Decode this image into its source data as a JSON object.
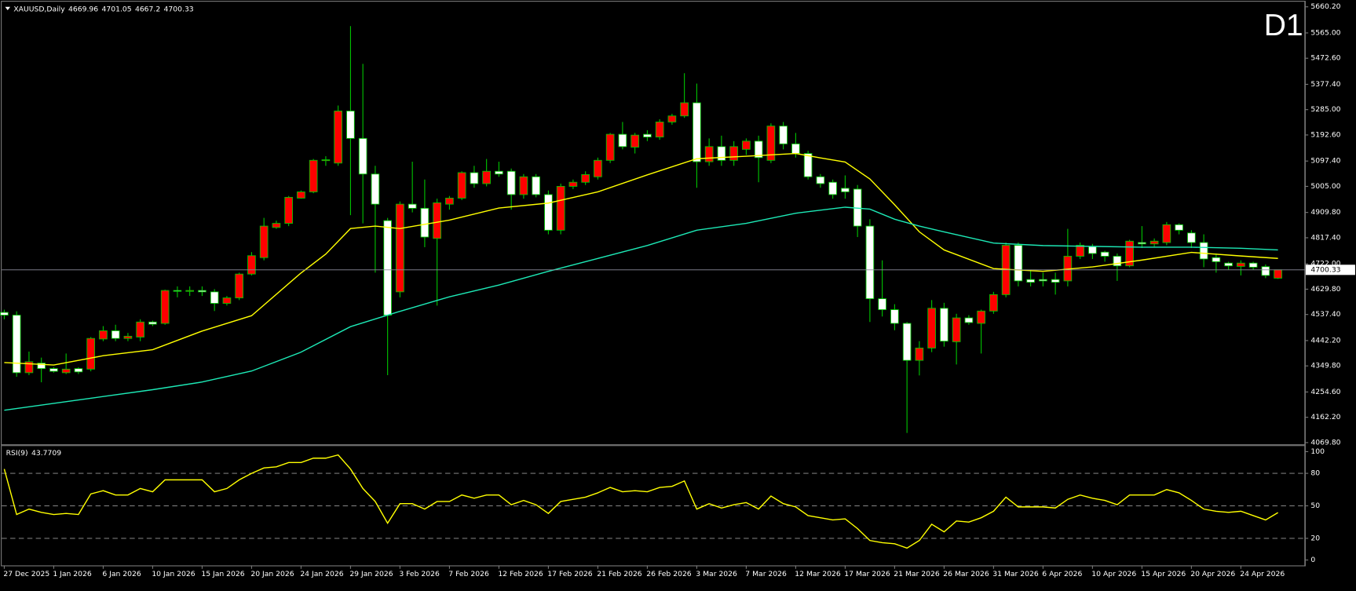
{
  "chart_data": [
    {
      "type": "candlestick",
      "title": "XAUUSD,Daily",
      "timeframe": "D1",
      "timeframe_color": "#ff0000",
      "categories": [
        "27 Dec 2025",
        null,
        null,
        null,
        "1 Jan 2026",
        null,
        null,
        null,
        "6 Jan 2026",
        null,
        null,
        null,
        "10 Jan 2026",
        null,
        null,
        null,
        "15 Jan 2026",
        null,
        null,
        null,
        "20 Jan 2026",
        null,
        null,
        null,
        "24 Jan 2026",
        null,
        null,
        null,
        "29 Jan 2026",
        null,
        null,
        null,
        "3 Feb 2026",
        null,
        null,
        null,
        "7 Feb 2026",
        null,
        null,
        null,
        "12 Feb 2026",
        null,
        null,
        null,
        "17 Feb 2026",
        null,
        null,
        null,
        "21 Feb 2026",
        null,
        null,
        null,
        "26 Feb 2026",
        null,
        null,
        null,
        "3 Mar 2026",
        null,
        null,
        null,
        "7 Mar 2026",
        null,
        null,
        null,
        "12 Mar 2026",
        null,
        null,
        null,
        "17 Mar 2026",
        null,
        null,
        null,
        "21 Mar 2026",
        null,
        null,
        null,
        "26 Mar 2026",
        null,
        null,
        null,
        "31 Mar 2026",
        null,
        null,
        null,
        "6 Apr 2026",
        null,
        null,
        null,
        "10 Apr 2026",
        null,
        null,
        null,
        "15 Apr 2026",
        null,
        null,
        null,
        "20 Apr 2026",
        null,
        null,
        null,
        "24 Apr 2026",
        null,
        null,
        null
      ],
      "open": [
        4545,
        4535,
        4325,
        4360,
        4340,
        4325,
        4340,
        4338,
        4448,
        4478,
        4450,
        4455,
        4510,
        4505,
        4625,
        4622,
        4625,
        4620,
        4578,
        4598,
        4685,
        4745,
        4855,
        4870,
        4962,
        4985,
        5100,
        5090,
        5280,
        5180,
        5050,
        4880,
        4620,
        4940,
        4925,
        4815,
        4940,
        4962,
        5055,
        5015,
        5060,
        5060,
        4975,
        5040,
        4975,
        4845,
        5005,
        5020,
        5040,
        5100,
        5195,
        5148,
        5195,
        5185,
        5240,
        5262,
        5310,
        5095,
        5150,
        5100,
        5140,
        5170,
        5100,
        5225,
        5160,
        5125,
        5040,
        5020,
        4998,
        4995,
        4860,
        4595,
        4555,
        4505,
        4370,
        4415,
        4560,
        4438,
        4525,
        4505,
        4550,
        4610,
        4790,
        4665,
        4665,
        4665,
        4660,
        4750,
        4785,
        4765,
        4750,
        4715,
        4800,
        4795,
        4800,
        4865,
        4835,
        4800,
        4745,
        4725,
        4713,
        4725,
        4712,
        4669.96
      ],
      "high": [
        4555,
        4549,
        4402,
        4380,
        4345,
        4395,
        4345,
        4455,
        4495,
        4500,
        4470,
        4520,
        4515,
        4628,
        4640,
        4640,
        4640,
        4630,
        4605,
        4690,
        4765,
        4890,
        4880,
        4970,
        4990,
        5105,
        5115,
        5300,
        5590,
        5452,
        5080,
        4890,
        4950,
        5095,
        5030,
        4960,
        4970,
        5060,
        5080,
        5105,
        5095,
        5070,
        5050,
        5050,
        4990,
        5015,
        5030,
        5060,
        5110,
        5200,
        5240,
        5200,
        5210,
        5250,
        5270,
        5418,
        5380,
        5180,
        5190,
        5170,
        5180,
        5190,
        5235,
        5240,
        5200,
        5135,
        5050,
        5030,
        5045,
        5010,
        4885,
        4735,
        4575,
        4510,
        4440,
        4590,
        4580,
        4540,
        4535,
        4555,
        4620,
        4800,
        4800,
        4700,
        4690,
        4690,
        4850,
        4800,
        4795,
        4770,
        4760,
        4810,
        4860,
        4815,
        4875,
        4870,
        4845,
        4830,
        4760,
        4730,
        4735,
        4730,
        4720,
        4701.05
      ],
      "low": [
        4520,
        4310,
        4316,
        4290,
        4325,
        4320,
        4320,
        4330,
        4440,
        4440,
        4440,
        4440,
        4495,
        4500,
        4600,
        4605,
        4605,
        4550,
        4570,
        4590,
        4680,
        4735,
        4850,
        4860,
        4960,
        4980,
        5080,
        5080,
        4900,
        4870,
        4690,
        4316,
        4600,
        4910,
        4783,
        4570,
        4920,
        4955,
        5000,
        5005,
        5040,
        4920,
        4960,
        4965,
        4830,
        4830,
        4995,
        5010,
        5030,
        5090,
        5140,
        5125,
        5170,
        5175,
        5230,
        5255,
        5000,
        5080,
        5080,
        5080,
        5120,
        5020,
        5090,
        5140,
        5110,
        5030,
        5000,
        4960,
        4960,
        4820,
        4510,
        4530,
        4480,
        4105,
        4315,
        4400,
        4420,
        4355,
        4500,
        4395,
        4540,
        4600,
        4640,
        4640,
        4640,
        4610,
        4640,
        4740,
        4740,
        4730,
        4660,
        4710,
        4780,
        4785,
        4790,
        4830,
        4780,
        4710,
        4690,
        4700,
        4680,
        4700,
        4670,
        4667.2
      ],
      "close": [
        4535,
        4325,
        4365,
        4340,
        4330,
        4338,
        4328,
        4450,
        4478,
        4450,
        4458,
        4510,
        4502,
        4625,
        4623,
        4625,
        4620,
        4578,
        4598,
        4685,
        4752,
        4860,
        4870,
        4965,
        4985,
        5100,
        5102,
        5280,
        5180,
        5050,
        4940,
        4535,
        4940,
        4925,
        4820,
        4945,
        4962,
        5055,
        5015,
        5060,
        5050,
        4975,
        5040,
        4975,
        4845,
        5005,
        5020,
        5048,
        5100,
        5195,
        5150,
        5192,
        5185,
        5240,
        5262,
        5310,
        5095,
        5150,
        5100,
        5150,
        5170,
        5110,
        5225,
        5160,
        5125,
        5040,
        5015,
        4975,
        4985,
        4860,
        4595,
        4555,
        4505,
        4370,
        4415,
        4560,
        4440,
        4525,
        4508,
        4550,
        4610,
        4790,
        4660,
        4655,
        4660,
        4655,
        4750,
        4790,
        4760,
        4750,
        4715,
        4805,
        4795,
        4805,
        4865,
        4845,
        4800,
        4740,
        4730,
        4715,
        4725,
        4710,
        4680,
        4700.33
      ],
      "bull_color": "#ff0000",
      "bear_color": "#ffffff",
      "wick_color": "#00c800",
      "price_line_color": "#8c8c9c",
      "series": [
        {
          "color": "#ffff00",
          "x": [
            0,
            4,
            8,
            12,
            16,
            20,
            24,
            26,
            28,
            30,
            32,
            36,
            40,
            44,
            48,
            52,
            56,
            60,
            64,
            66,
            68,
            70,
            72,
            74,
            76,
            80,
            84,
            88,
            92,
            96,
            100,
            103
          ],
          "values": [
            4362,
            4353,
            4387,
            4409,
            4477,
            4533,
            4689,
            4758,
            4851,
            4860,
            4851,
            4882,
            4926,
            4944,
            4985,
            5047,
            5106,
            5115,
            5125,
            5109,
            5094,
            5032,
            4938,
            4839,
            4773,
            4705,
            4695,
            4711,
            4736,
            4764,
            4751,
            4742
          ]
        },
        {
          "color": "#1de9b6",
          "x": [
            0,
            4,
            8,
            12,
            16,
            20,
            24,
            28,
            32,
            36,
            40,
            44,
            48,
            52,
            56,
            60,
            64,
            68,
            70,
            72,
            74,
            76,
            80,
            84,
            88,
            92,
            96,
            100,
            103
          ],
          "values": [
            4188,
            4213,
            4238,
            4263,
            4291,
            4331,
            4400,
            4493,
            4549,
            4602,
            4645,
            4695,
            4742,
            4789,
            4845,
            4870,
            4907,
            4929,
            4922,
            4885,
            4860,
            4839,
            4798,
            4789,
            4786,
            4783,
            4783,
            4779,
            4773
          ]
        }
      ],
      "ylim": [
        4063.6,
        5675.8
      ],
      "yticks": [
        {
          "value": 5660.2,
          "label": "5660.20"
        },
        {
          "value": 5565,
          "label": "5565.00"
        },
        {
          "value": 5472.6,
          "label": "5472.60"
        },
        {
          "value": 5377.4,
          "label": "5377.40"
        },
        {
          "value": 5285,
          "label": "5285.00"
        },
        {
          "value": 5192.6,
          "label": "5192.60"
        },
        {
          "value": 5097.4,
          "label": "5097.40"
        },
        {
          "value": 5005,
          "label": "5005.00"
        },
        {
          "value": 4909.8,
          "label": "4909.80"
        },
        {
          "value": 4817.4,
          "label": "4817.40"
        },
        {
          "value": 4722,
          "label": "4722.00"
        },
        {
          "value": 4629.8,
          "label": "4629.80"
        },
        {
          "value": 4537.4,
          "label": "4537.40"
        },
        {
          "value": 4442.2,
          "label": "4442.20"
        },
        {
          "value": 4349.8,
          "label": "4349.80"
        },
        {
          "value": 4254.6,
          "label": "4254.60"
        },
        {
          "value": 4162.2,
          "label": "4162.20"
        },
        {
          "value": 4069.8,
          "label": "4069.80"
        }
      ]
    },
    {
      "type": "line",
      "title": "RSI(9)",
      "color": "#ffff00",
      "values": [
        84,
        42,
        47,
        44,
        42,
        43,
        42,
        61,
        64,
        60,
        60,
        66,
        63,
        74,
        74,
        74,
        74,
        63,
        66,
        74,
        80,
        85,
        86,
        90,
        90,
        94,
        94,
        97,
        84,
        66,
        54,
        34,
        52,
        52,
        47,
        54,
        54,
        60,
        57,
        60,
        60,
        51,
        55,
        51,
        43,
        54,
        56,
        58,
        62,
        67,
        63,
        64,
        63,
        67,
        68,
        73,
        47,
        52,
        48,
        51,
        53,
        47,
        59,
        52,
        49,
        41,
        39,
        37,
        38,
        29,
        18,
        16,
        15,
        11,
        18,
        33,
        26,
        36,
        35,
        39,
        45,
        58,
        49,
        49,
        49,
        48,
        56,
        60,
        57,
        55,
        51,
        60,
        60,
        60,
        65,
        62,
        55,
        47,
        45,
        44,
        45,
        41,
        37,
        43.7709
      ],
      "ylim": [
        -5,
        106
      ],
      "yticks": [
        100,
        80,
        50,
        20,
        0
      ],
      "levels": [
        80,
        50,
        20
      ]
    }
  ]
}
